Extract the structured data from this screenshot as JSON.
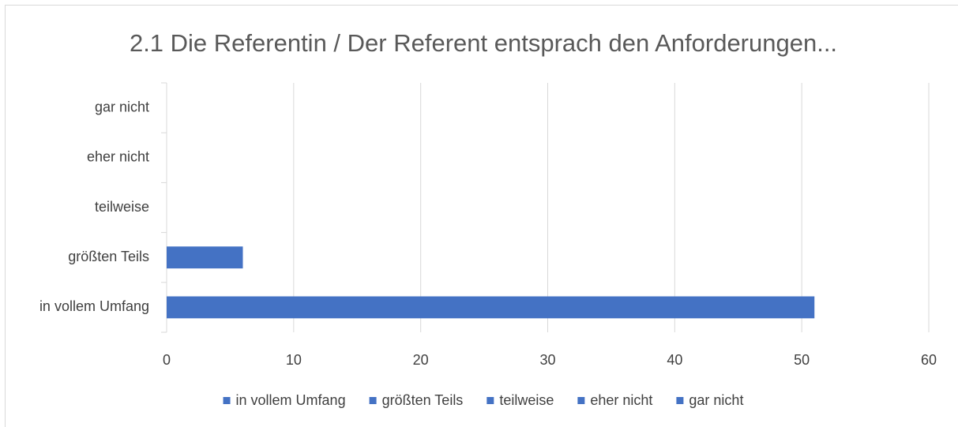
{
  "chart_data": {
    "type": "bar",
    "orientation": "horizontal",
    "title": "2.1 Die Referentin / Der Referent entsprach den Anforderungen...",
    "categories": [
      "in vollem Umfang",
      "größten Teils",
      "teilweise",
      "eher nicht",
      "gar nicht"
    ],
    "values": [
      51,
      6,
      0,
      0,
      0
    ],
    "color": "#4472c4",
    "xlim": [
      0,
      60
    ],
    "xticks": [
      0,
      10,
      20,
      30,
      40,
      50,
      60
    ],
    "grid": true,
    "legend": "bottom"
  }
}
